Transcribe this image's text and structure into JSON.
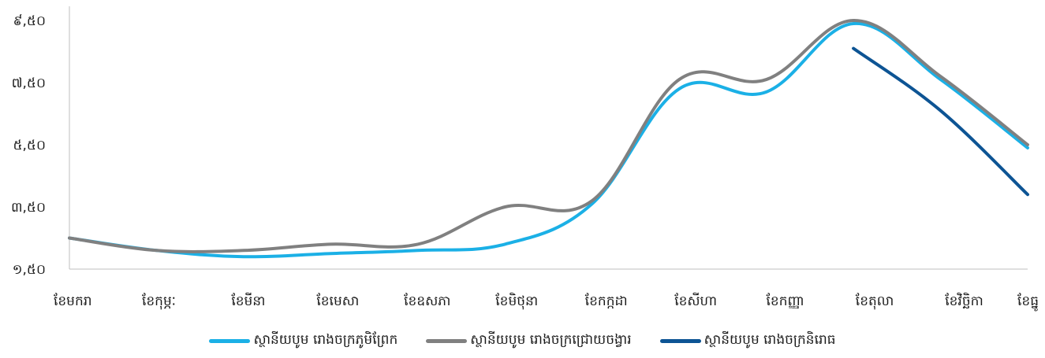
{
  "chart_data": {
    "type": "line",
    "title": "",
    "xlabel": "",
    "ylabel": "",
    "categories": [
      "ខែមករា",
      "ខែកុម្ភៈ",
      "ខែមីនា",
      "ខែមេសា",
      "ខែឧសភា",
      "ខែមិថុនា",
      "ខែកក្កដា",
      "ខែសីហា",
      "ខែកញ្ញា",
      "ខែតុលា",
      "ខែវិច្ឆិកា",
      "ខែធ្នូ"
    ],
    "y_ticks": [
      "១,៥០",
      "៣,៥០",
      "៥,៥០",
      "៧,៥០",
      "៩,៥០"
    ],
    "y_tick_values": [
      1.5,
      3.5,
      5.5,
      7.5,
      9.5
    ],
    "ylim": [
      1.5,
      9.5
    ],
    "grid": false,
    "legend_position": "bottom",
    "series": [
      {
        "name": "ស្ថានីយបូម រោងចក្រភូមិព្រែក",
        "color": "#1bb0e6",
        "values": [
          2.5,
          2.1,
          1.9,
          2.0,
          2.1,
          2.3,
          3.6,
          7.3,
          7.2,
          9.4,
          7.6,
          5.4
        ]
      },
      {
        "name": "ស្ថានីយបូម រោងចក្រជ្រោយចង្វារ",
        "color": "#808080",
        "values": [
          2.5,
          2.1,
          2.1,
          2.3,
          2.3,
          3.5,
          3.7,
          7.6,
          7.6,
          9.5,
          7.7,
          5.5
        ]
      },
      {
        "name": "ស្ថានីយបូម រោងចក្រនិរោធ",
        "color": "#0d5494",
        "values": [
          null,
          null,
          null,
          null,
          null,
          null,
          null,
          null,
          null,
          8.6,
          6.6,
          3.9
        ]
      }
    ]
  }
}
